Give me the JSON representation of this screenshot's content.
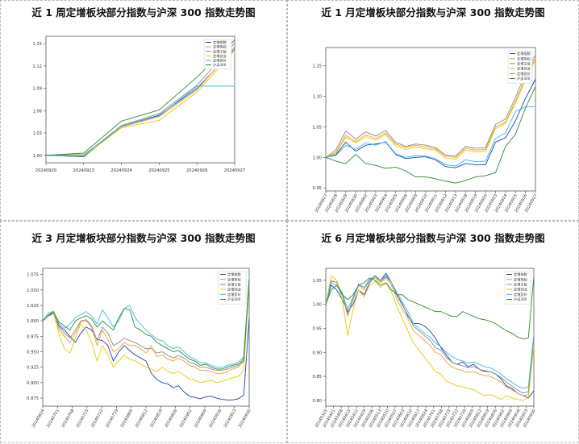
{
  "panels": [
    {
      "title": "近 1 周定增板块部分指数与沪深 300 指数走势图"
    },
    {
      "title": "近 1 月定增板块部分指数与沪深 300 指数走势图"
    },
    {
      "title": "近 3 月定增板块部分指数与沪深 300 指数走势图"
    },
    {
      "title": "近 6 月定增板块部分指数与沪深 300 指数走势图"
    }
  ],
  "chart_data": [
    {
      "type": "line",
      "x": [
        "20240920",
        "20240923",
        "20240924",
        "20240925",
        "20240926",
        "20240927"
      ],
      "ylim": [
        0.99,
        1.16
      ],
      "yticks": [
        1.0,
        1.03,
        1.06,
        1.09,
        1.12,
        1.15
      ],
      "ytick_labels": [
        "1.00",
        "1.03",
        "1.06",
        "1.09",
        "1.12",
        "1.15"
      ],
      "legend_position": "top-right",
      "series": [
        {
          "name": "定增指数",
          "color": "#1f3fbf",
          "values": [
            1.0,
            0.998,
            1.039,
            1.054,
            1.09,
            1.143
          ]
        },
        {
          "name": "定增等权",
          "color": "#f0a030",
          "values": [
            1.0,
            1.001,
            1.038,
            1.052,
            1.088,
            1.146
          ]
        },
        {
          "name": "定增主板",
          "color": "#8a8a8a",
          "values": [
            1.0,
            1.0,
            1.04,
            1.056,
            1.094,
            1.151
          ]
        },
        {
          "name": "定增创业",
          "color": "#e8c800",
          "values": [
            1.0,
            0.999,
            1.037,
            1.047,
            1.085,
            1.141
          ]
        },
        {
          "name": "定增竞价",
          "color": "#33bbee",
          "values": [
            1.0,
            1.0,
            1.039,
            1.053,
            1.093,
            1.093
          ]
        },
        {
          "name": "沪深300",
          "color": "#2e8b2e",
          "values": [
            1.0,
            1.003,
            1.046,
            1.061,
            1.105,
            1.155
          ]
        }
      ]
    },
    {
      "type": "line",
      "x": [
        "20240827",
        "20240828",
        "20240829",
        "20240830",
        "20240902",
        "20240903",
        "20240904",
        "20240905",
        "20240906",
        "20240909",
        "20240910",
        "20240911",
        "20240912",
        "20240913",
        "20240918",
        "20240919",
        "20240920",
        "20240923",
        "20240924",
        "20240925",
        "20240926",
        "20240927"
      ],
      "ylim": [
        0.945,
        1.18
      ],
      "yticks": [
        0.95,
        1.0,
        1.05,
        1.1,
        1.15
      ],
      "ytick_labels": [
        "0.95",
        "1.00",
        "1.05",
        "1.10",
        "1.15"
      ],
      "legend_position": "top-right",
      "series": [
        {
          "name": "定增指数",
          "color": "#1f3fbf",
          "values": [
            1.0,
            1.004,
            1.025,
            1.01,
            1.02,
            1.022,
            1.025,
            1.005,
            0.998,
            1.0,
            1.001,
            0.996,
            0.985,
            0.983,
            0.99,
            0.988,
            0.988,
            1.025,
            1.032,
            1.06,
            1.097,
            1.128
          ]
        },
        {
          "name": "定增等权",
          "color": "#f0a030",
          "values": [
            1.0,
            1.008,
            1.036,
            1.026,
            1.037,
            1.031,
            1.04,
            1.022,
            1.016,
            1.02,
            1.017,
            1.014,
            1.002,
            1.0,
            1.015,
            1.012,
            1.013,
            1.05,
            1.058,
            1.092,
            1.13,
            1.163
          ]
        },
        {
          "name": "定增主板",
          "color": "#8a8a8a",
          "values": [
            1.0,
            1.012,
            1.043,
            1.03,
            1.042,
            1.035,
            1.044,
            1.025,
            1.018,
            1.022,
            1.02,
            1.016,
            1.004,
            1.002,
            1.018,
            1.015,
            1.016,
            1.054,
            1.063,
            1.098,
            1.137,
            1.168
          ]
        },
        {
          "name": "定增创业",
          "color": "#e8c800",
          "values": [
            1.0,
            1.006,
            1.033,
            1.024,
            1.034,
            1.028,
            1.038,
            1.019,
            1.013,
            1.017,
            1.014,
            1.012,
            0.999,
            0.997,
            1.012,
            1.009,
            1.01,
            1.047,
            1.056,
            1.089,
            1.127,
            1.16
          ]
        },
        {
          "name": "定增竞价",
          "color": "#33bbee",
          "values": [
            1.0,
            1.003,
            1.02,
            1.013,
            1.024,
            1.02,
            1.026,
            1.006,
            1.0,
            1.003,
            1.002,
            0.998,
            0.988,
            0.986,
            0.996,
            0.993,
            0.994,
            1.031,
            1.04,
            1.075,
            1.083,
            1.083
          ]
        },
        {
          "name": "沪深300",
          "color": "#2e8b2e",
          "values": [
            1.0,
            0.994,
            0.99,
            1.005,
            0.99,
            0.987,
            0.982,
            0.984,
            0.978,
            0.968,
            0.968,
            0.965,
            0.961,
            0.958,
            0.962,
            0.968,
            0.97,
            0.975,
            1.018,
            1.038,
            1.081,
            1.116
          ]
        }
      ]
    },
    {
      "type": "line",
      "x_ticks": [
        "20240624",
        "20240701",
        "20240708",
        "20240715",
        "20240722",
        "20240729",
        "20240805",
        "20240812",
        "20240819",
        "20240826",
        "20240902",
        "20240909",
        "20240916",
        "20240923",
        "20240930"
      ],
      "ylim": [
        0.862,
        1.085
      ],
      "yticks": [
        0.875,
        0.9,
        0.925,
        0.95,
        0.975,
        1.0,
        1.025,
        1.05,
        1.075
      ],
      "ytick_labels": [
        "0.875",
        "0.900",
        "0.925",
        "0.950",
        "0.975",
        "1.000",
        "1.025",
        "1.050",
        "1.075"
      ],
      "legend_position": "top-right",
      "series": [
        {
          "name": "定增指数",
          "color": "#1f3fbf",
          "values": [
            1.0,
            1.008,
            1.012,
            0.992,
            0.985,
            0.975,
            0.965,
            0.98,
            0.99,
            0.985,
            0.97,
            0.968,
            0.96,
            0.935,
            0.95,
            0.96,
            0.952,
            0.945,
            0.94,
            0.935,
            0.915,
            0.905,
            0.9,
            0.898,
            0.892,
            0.895,
            0.885,
            0.878,
            0.876,
            0.874,
            0.877,
            0.878,
            0.875,
            0.873,
            0.872,
            0.872,
            0.874,
            0.88,
            1.004
          ]
        },
        {
          "name": "定增等权",
          "color": "#f0a030",
          "values": [
            1.0,
            1.012,
            1.016,
            0.985,
            0.975,
            0.965,
            0.98,
            0.998,
            1.0,
            0.99,
            0.96,
            0.985,
            0.97,
            0.95,
            0.955,
            0.965,
            0.96,
            0.96,
            0.955,
            0.948,
            0.96,
            0.942,
            0.945,
            0.938,
            0.935,
            0.94,
            0.935,
            0.928,
            0.925,
            0.92,
            0.92,
            0.918,
            0.915,
            0.915,
            0.918,
            0.922,
            0.925,
            0.935,
            1.066
          ]
        },
        {
          "name": "定增主板",
          "color": "#8a8a8a",
          "values": [
            1.0,
            1.01,
            1.014,
            0.99,
            0.98,
            0.972,
            0.985,
            1.0,
            1.002,
            0.992,
            0.968,
            0.99,
            0.98,
            0.96,
            0.965,
            0.972,
            0.968,
            0.965,
            0.96,
            0.955,
            0.955,
            0.948,
            0.95,
            0.944,
            0.94,
            0.944,
            0.94,
            0.933,
            0.93,
            0.925,
            0.925,
            0.922,
            0.92,
            0.92,
            0.922,
            0.925,
            0.928,
            0.94,
            1.07
          ]
        },
        {
          "name": "定增创业",
          "color": "#e8c800",
          "values": [
            1.0,
            1.01,
            1.012,
            0.978,
            0.955,
            0.948,
            0.972,
            0.995,
            0.985,
            0.965,
            0.935,
            0.96,
            0.945,
            0.925,
            0.935,
            0.945,
            0.938,
            0.935,
            0.93,
            0.925,
            0.922,
            0.918,
            0.925,
            0.918,
            0.915,
            0.918,
            0.912,
            0.906,
            0.904,
            0.9,
            0.902,
            0.904,
            0.9,
            0.902,
            0.905,
            0.908,
            0.91,
            0.92,
            1.06
          ]
        },
        {
          "name": "定增竞价",
          "color": "#33bbee",
          "values": [
            1.0,
            1.012,
            1.015,
            0.995,
            0.988,
            0.995,
            1.005,
            1.01,
            1.015,
            1.008,
            0.995,
            1.018,
            1.005,
            0.99,
            1.0,
            1.02,
            1.025,
            1.005,
            0.995,
            0.985,
            0.978,
            0.97,
            0.968,
            0.96,
            0.955,
            0.958,
            0.95,
            0.942,
            0.938,
            0.932,
            0.932,
            0.928,
            0.925,
            0.925,
            0.928,
            0.93,
            0.933,
            0.942,
            1.072
          ]
        },
        {
          "name": "沪深300",
          "color": "#2e8b2e",
          "values": [
            1.0,
            1.008,
            1.014,
            0.998,
            0.992,
            0.985,
            1.0,
            1.005,
            1.008,
            1.003,
            0.99,
            1.0,
            0.992,
            0.985,
            1.005,
            1.02,
            1.018,
            0.99,
            0.985,
            0.978,
            0.975,
            0.965,
            0.96,
            0.955,
            0.95,
            0.952,
            0.945,
            0.938,
            0.935,
            0.928,
            0.93,
            0.925,
            0.922,
            0.922,
            0.925,
            0.928,
            0.93,
            0.935,
            1.066
          ]
        }
      ]
    },
    {
      "type": "line",
      "x_ticks": [
        "20240325",
        "20240401",
        "20240408",
        "20240415",
        "20240422",
        "20240429",
        "20240506",
        "20240513",
        "20240520",
        "20240527",
        "20240603",
        "20240610",
        "20240617",
        "20240624",
        "20240701",
        "20240708",
        "20240715",
        "20240722",
        "20240729",
        "20240805",
        "20240812",
        "20240819",
        "20240826",
        "20240902",
        "20240909",
        "20240916",
        "20240923",
        "20240930"
      ],
      "ylim": [
        0.788,
        1.075
      ],
      "yticks": [
        0.8,
        0.85,
        0.9,
        0.95,
        1.0,
        1.05
      ],
      "ytick_labels": [
        "0.80",
        "0.85",
        "0.90",
        "0.95",
        "1.00",
        "1.05"
      ],
      "legend_position": "top-right",
      "series": [
        {
          "name": "定增指数",
          "color": "#1f3fbf",
          "values": [
            1.0,
            1.04,
            1.03,
            1.01,
            0.985,
            1.0,
            1.03,
            1.02,
            1.045,
            1.06,
            1.05,
            1.065,
            1.045,
            1.02,
            1.0,
            0.975,
            0.96,
            0.96,
            0.955,
            0.945,
            0.93,
            0.91,
            0.895,
            0.88,
            0.875,
            0.88,
            0.87,
            0.875,
            0.865,
            0.86,
            0.86,
            0.855,
            0.845,
            0.83,
            0.825,
            0.815,
            0.81,
            0.805,
            0.82
          ]
        },
        {
          "name": "定增等权",
          "color": "#f0a030",
          "values": [
            1.0,
            1.05,
            1.045,
            1.02,
            0.975,
            1.01,
            1.04,
            1.03,
            1.05,
            1.055,
            1.045,
            1.055,
            1.04,
            1.01,
            0.99,
            0.97,
            0.945,
            0.935,
            0.925,
            0.915,
            0.9,
            0.895,
            0.88,
            0.87,
            0.865,
            0.862,
            0.858,
            0.86,
            0.855,
            0.852,
            0.85,
            0.845,
            0.838,
            0.828,
            0.822,
            0.815,
            0.81,
            0.812,
            0.925
          ]
        },
        {
          "name": "定增主板",
          "color": "#8a8a8a",
          "values": [
            1.0,
            1.048,
            1.046,
            1.022,
            0.98,
            1.012,
            1.042,
            1.035,
            1.052,
            1.058,
            1.048,
            1.058,
            1.045,
            1.018,
            0.998,
            0.978,
            0.955,
            0.945,
            0.935,
            0.925,
            0.91,
            0.905,
            0.89,
            0.88,
            0.875,
            0.872,
            0.868,
            0.87,
            0.865,
            0.862,
            0.86,
            0.855,
            0.848,
            0.838,
            0.83,
            0.822,
            0.815,
            0.818,
            0.93
          ]
        },
        {
          "name": "定增创业",
          "color": "#e8c800",
          "values": [
            1.0,
            1.06,
            1.05,
            1.01,
            0.935,
            0.99,
            1.03,
            1.015,
            1.04,
            1.048,
            1.035,
            1.045,
            1.025,
            0.995,
            0.97,
            0.945,
            0.92,
            0.905,
            0.89,
            0.875,
            0.86,
            0.855,
            0.84,
            0.835,
            0.83,
            0.828,
            0.825,
            0.822,
            0.815,
            0.81,
            0.812,
            0.808,
            0.802,
            0.81,
            0.805,
            0.802,
            0.8,
            0.805,
            0.915
          ]
        },
        {
          "name": "定增竞价",
          "color": "#33bbee",
          "values": [
            1.0,
            1.045,
            1.04,
            1.025,
            0.99,
            1.015,
            1.04,
            1.035,
            1.05,
            1.06,
            1.05,
            1.06,
            1.045,
            1.025,
            1.005,
            0.985,
            0.96,
            0.95,
            0.94,
            0.932,
            0.92,
            0.912,
            0.9,
            0.892,
            0.885,
            0.882,
            0.878,
            0.88,
            0.875,
            0.87,
            0.868,
            0.862,
            0.855,
            0.845,
            0.838,
            0.83,
            0.825,
            0.828,
            0.94
          ]
        },
        {
          "name": "沪深300",
          "color": "#2e8b2e",
          "values": [
            1.0,
            1.03,
            1.04,
            1.02,
            1.01,
            1.02,
            1.04,
            1.045,
            1.055,
            1.05,
            1.04,
            1.045,
            1.03,
            1.02,
            1.02,
            1.01,
            1.005,
            1.0,
            0.995,
            0.99,
            0.985,
            0.985,
            0.98,
            0.975,
            0.975,
            0.985,
            0.98,
            0.975,
            0.97,
            0.968,
            0.965,
            0.96,
            0.952,
            0.945,
            0.94,
            0.932,
            0.928,
            0.93,
            1.058
          ]
        }
      ]
    }
  ]
}
